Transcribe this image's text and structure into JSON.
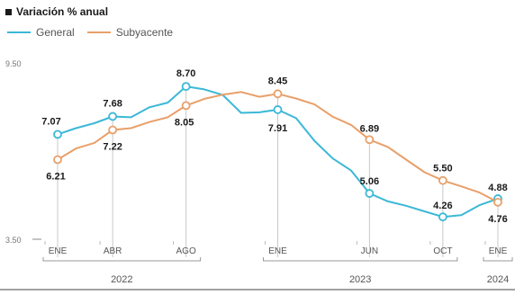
{
  "header": {
    "title": "Variación % anual"
  },
  "legend": {
    "items": [
      {
        "label": "General",
        "color": "#3bb8d6"
      },
      {
        "label": "Subyacente",
        "color": "#e8a06a"
      }
    ]
  },
  "chart_data": {
    "type": "line",
    "title": "Variación % anual",
    "y_ticks": [
      "9.50",
      "3.50"
    ],
    "ylim": [
      3.5,
      9.5
    ],
    "x_ticks": [
      "ENE",
      "ABR",
      "AGO",
      "ENE",
      "JUN",
      "OCT",
      "ENE"
    ],
    "tick_months": [
      0,
      3,
      7,
      12,
      17,
      21,
      24
    ],
    "year_labels": [
      {
        "label": "2022",
        "from": 0,
        "to": 7
      },
      {
        "label": "2023",
        "from": 12,
        "to": 21
      },
      {
        "label": "2024",
        "from": 24,
        "to": 24
      }
    ],
    "series": [
      {
        "name": "General",
        "color": "#3bb8d6",
        "x": [
          0,
          1,
          2,
          3,
          4,
          5,
          6,
          7,
          8,
          9,
          10,
          11,
          12,
          13,
          14,
          15,
          16,
          17,
          18,
          19,
          20,
          21,
          22,
          23,
          24
        ],
        "values": [
          7.07,
          7.28,
          7.45,
          7.68,
          7.65,
          7.99,
          8.15,
          8.7,
          8.6,
          8.41,
          7.8,
          7.82,
          7.91,
          7.62,
          6.85,
          6.25,
          5.84,
          5.06,
          4.79,
          4.64,
          4.45,
          4.26,
          4.32,
          4.66,
          4.88
        ]
      },
      {
        "name": "Subyacente",
        "color": "#e8a06a",
        "x": [
          0,
          1,
          2,
          3,
          4,
          5,
          6,
          7,
          8,
          9,
          10,
          11,
          12,
          13,
          14,
          15,
          16,
          17,
          18,
          19,
          20,
          21,
          22,
          23,
          24
        ],
        "values": [
          6.21,
          6.59,
          6.78,
          7.22,
          7.28,
          7.49,
          7.65,
          8.05,
          8.28,
          8.42,
          8.51,
          8.35,
          8.45,
          8.29,
          8.09,
          7.67,
          7.39,
          6.89,
          6.64,
          6.21,
          5.78,
          5.5,
          5.3,
          5.09,
          4.76
        ]
      }
    ],
    "point_labels": [
      {
        "series": 0,
        "index": 0,
        "text": "7.07"
      },
      {
        "series": 0,
        "index": 3,
        "text": "7.68"
      },
      {
        "series": 0,
        "index": 7,
        "text": "8.70"
      },
      {
        "series": 0,
        "index": 12,
        "text": "7.91"
      },
      {
        "series": 0,
        "index": 17,
        "text": "5.06"
      },
      {
        "series": 0,
        "index": 21,
        "text": "4.26"
      },
      {
        "series": 0,
        "index": 24,
        "text": "4.88"
      },
      {
        "series": 1,
        "index": 0,
        "text": "6.21"
      },
      {
        "series": 1,
        "index": 3,
        "text": "7.22"
      },
      {
        "series": 1,
        "index": 7,
        "text": "8.05"
      },
      {
        "series": 1,
        "index": 12,
        "text": "8.45"
      },
      {
        "series": 1,
        "index": 17,
        "text": "6.89"
      },
      {
        "series": 1,
        "index": 21,
        "text": "5.50"
      },
      {
        "series": 1,
        "index": 24,
        "text": "4.76"
      }
    ]
  }
}
